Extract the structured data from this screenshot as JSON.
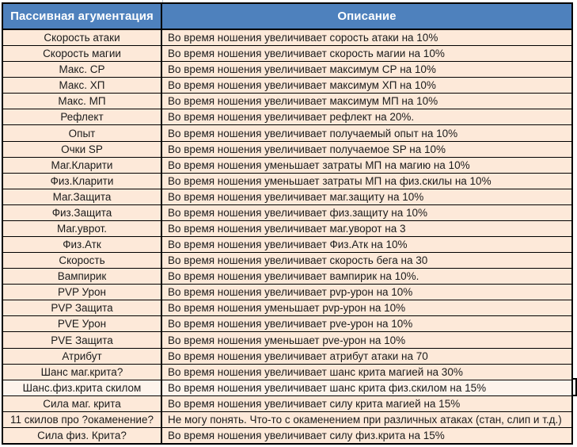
{
  "table": {
    "headers": [
      "Пассивная агументация",
      "Описание"
    ],
    "rows": [
      {
        "name": "Скорость атаки",
        "desc": "Во время ношения увеличивает сорость атаки на 10%"
      },
      {
        "name": "Скорость магии",
        "desc": "Во время ношения увеличивает скорость магии на 10%"
      },
      {
        "name": "Макс. СР",
        "desc": "Во время ношения увеличивает максимум СР на 10%"
      },
      {
        "name": "Макс. ХП",
        "desc": "Во время ношения увеличивает максимум ХП на 10%"
      },
      {
        "name": "Макс. МП",
        "desc": "Во время ношения увеличивает максимум МП на 10%"
      },
      {
        "name": "Рефлект",
        "desc": "Во время ношения увеличивает рефлект на 20%."
      },
      {
        "name": "Опыт",
        "desc": "Во время ношения увеличивает получаемый опыт на 10%"
      },
      {
        "name": "Очки SP",
        "desc": "Во время ношения увеличивает получаемое SP на 10%"
      },
      {
        "name": "Маг.Кларити",
        "desc": "Во время ношения уменьшает затраты МП на магию на 10%"
      },
      {
        "name": "Физ.Кларити",
        "desc": "Во время ношения уменьшает затраты МП на физ.скилы на 10%"
      },
      {
        "name": "Маг.Защита",
        "desc": "Во время ношения увеличивает маг.защиту на 10%"
      },
      {
        "name": "Физ.Защита",
        "desc": "Во время ношения увеличивает физ.защиту на 10%"
      },
      {
        "name": "Маг.уврот.",
        "desc": "Во время ношения увеличивает маг.уворот на 3"
      },
      {
        "name": "Физ.Атк",
        "desc": "Во время ношения увеличивает Физ.Атк на 10%"
      },
      {
        "name": "Скорость",
        "desc": "Во время ношения увеличивает скорость бега на 30"
      },
      {
        "name": "Вампирик",
        "desc": "Во время ношения увеличивает вампирик на 10%."
      },
      {
        "name": "PVP Урон",
        "desc": "Во время ношения увеличивает pvp-урон на 10%"
      },
      {
        "name": "PVP Защита",
        "desc": "Во время ношения уменьшает pvp-урон на 10%"
      },
      {
        "name": "PVE Урон",
        "desc": "Во время ношения увеличивает pve-урон на 10%"
      },
      {
        "name": "PVE Защита",
        "desc": "Во время ношения уменьшает pve-урон на 10%"
      },
      {
        "name": "Атрибут",
        "desc": "Во время ношения увеличивает атрибут атаки на 70"
      },
      {
        "name": "Шанс маг.крита?",
        "desc": "Во время ношения увеличивает шанс крита магией на 30%"
      },
      {
        "name": "Шанс.физ.крита скилом",
        "desc": "Во время ношения увеличивает шанс крита физ.скилом на 15%",
        "highlight": true
      },
      {
        "name": "Сила маг. крита",
        "desc": "Во время ношения увеличивает силу крита магией на 15%"
      },
      {
        "name": "11 скилов про ?окаменение?",
        "desc": "Не могу понять. Что-то с окаменением при различных атаках (стан, слип и т.д.)"
      },
      {
        "name": "Сила физ. Крита?",
        "desc": "Во время ношения увеличивает силу физ.крита на 15%"
      }
    ],
    "colors": {
      "header_bg": "#4e81bd",
      "header_text": "#ffffff",
      "row_bg": "#fde9d9",
      "row_highlight_bg": "#fef4ec",
      "border": "#000000",
      "row_text": "#1b1b1b"
    }
  }
}
